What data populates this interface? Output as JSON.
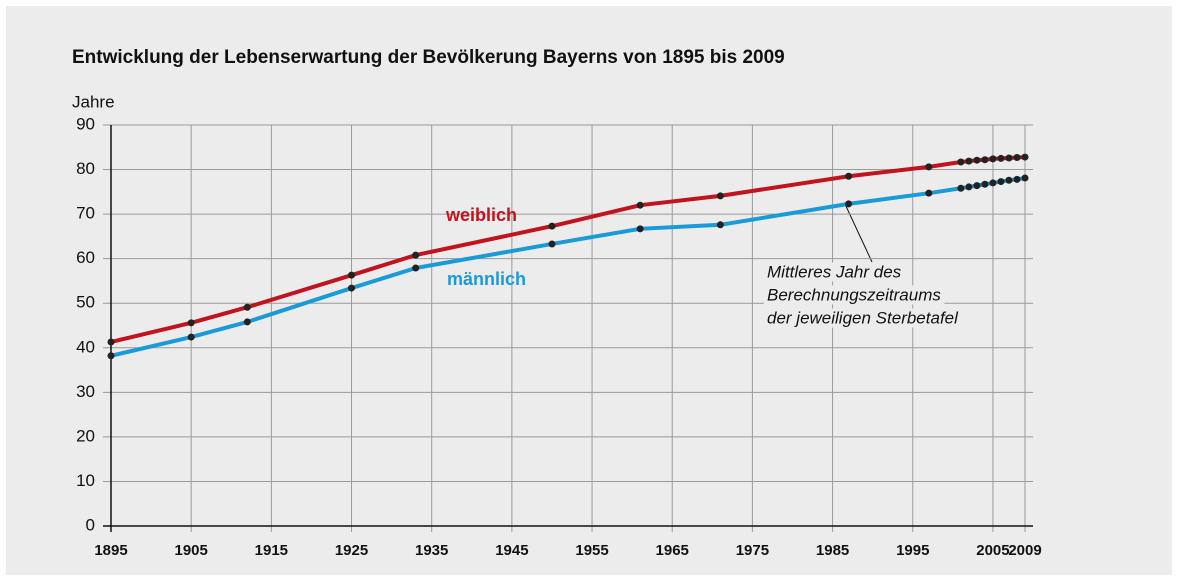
{
  "chart_data": {
    "type": "line",
    "title": "Entwicklung der Lebenserwartung der Bevölkerung Bayerns von 1895 bis 2009",
    "y_axis_label": "Jahre",
    "x": [
      1895,
      1905,
      1912,
      1925,
      1933,
      1950,
      1961,
      1971,
      1987,
      1997,
      2001,
      2002,
      2003,
      2004,
      2005,
      2006,
      2007,
      2008,
      2009
    ],
    "series": [
      {
        "name": "weiblich",
        "color": "#c0141e",
        "values": [
          41.3,
          45.6,
          49.1,
          56.3,
          60.8,
          67.3,
          72.0,
          74.1,
          78.5,
          80.6,
          81.7,
          81.9,
          82.1,
          82.2,
          82.4,
          82.5,
          82.6,
          82.7,
          82.8
        ]
      },
      {
        "name": "männlich",
        "color": "#1a9ad6",
        "values": [
          38.2,
          42.4,
          45.8,
          53.4,
          57.9,
          63.3,
          66.7,
          67.6,
          72.3,
          74.7,
          75.8,
          76.1,
          76.4,
          76.7,
          77.0,
          77.3,
          77.6,
          77.8,
          78.1
        ]
      }
    ],
    "annotation": [
      "Mittleres Jahr des",
      "Berechnungszeitraums",
      "der jeweiligen Sterbetafel"
    ],
    "xlim": [
      1895,
      2009
    ],
    "xticks": [
      1895,
      1905,
      1915,
      1925,
      1935,
      1945,
      1955,
      1965,
      1975,
      1985,
      1995,
      2005,
      2009
    ],
    "ylim": [
      0,
      90
    ],
    "yticks": [
      0,
      10,
      20,
      30,
      40,
      50,
      60,
      70,
      80,
      90
    ],
    "grid": true
  }
}
